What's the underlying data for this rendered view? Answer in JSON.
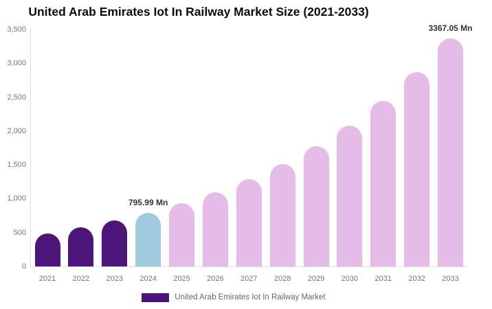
{
  "title": "United Arab Emirates Iot In Railway Market Size (2021-2033)",
  "legend": {
    "label": "United Arab Emirates Iot In Railway Market",
    "swatch_color": "#4C157A"
  },
  "colors": {
    "historical": "#4C157A",
    "base_year": "#A0CADE",
    "forecast": "#E5BCE7",
    "axis_line": "#dddddd",
    "tick_text": "#757575",
    "value_label_text": "#333333"
  },
  "chart_data": {
    "type": "bar",
    "title": "United Arab Emirates Iot In Railway Market Size (2021-2033)",
    "xlabel": "",
    "ylabel": "",
    "unit": "Mn",
    "categories": [
      "2021",
      "2022",
      "2023",
      "2024",
      "2025",
      "2026",
      "2027",
      "2028",
      "2029",
      "2030",
      "2031",
      "2032",
      "2033"
    ],
    "values": [
      492,
      578,
      678,
      795.99,
      934,
      1097,
      1287,
      1511,
      1774,
      2082,
      2444,
      2868,
      3367.05
    ],
    "bar_roles": [
      "historical",
      "historical",
      "historical",
      "base_year",
      "forecast",
      "forecast",
      "forecast",
      "forecast",
      "forecast",
      "forecast",
      "forecast",
      "forecast",
      "forecast"
    ],
    "data_labels": {
      "2024": "795.99 Mn",
      "2033": "3367.05 Mn"
    },
    "ylim": [
      0,
      3500
    ],
    "ytick_values": [
      3500,
      3000,
      2500,
      2000,
      1500,
      1000,
      500,
      0
    ],
    "ytick_labels": [
      "3,500",
      "3,000",
      "2,500",
      "2,000",
      "1,500",
      "1,000",
      "500",
      "0"
    ],
    "grid": false,
    "legend_position": "bottom"
  }
}
